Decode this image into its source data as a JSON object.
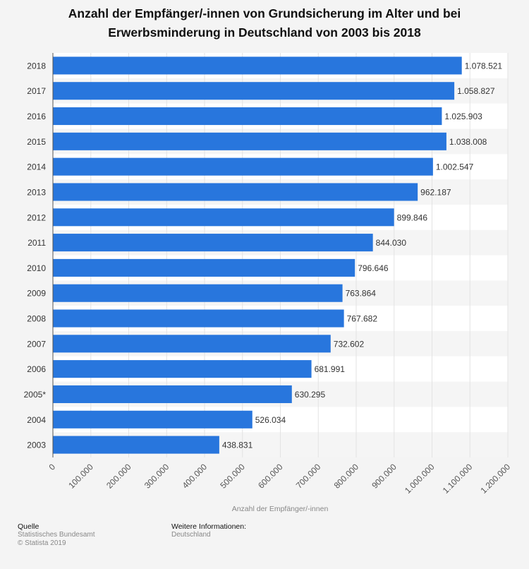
{
  "title": "Anzahl der Empfänger/-innen von Grundsicherung im Alter und bei Erwerbsminderung in Deutschland von 2003 bis 2018",
  "chart_data": {
    "type": "bar",
    "orientation": "horizontal",
    "categories": [
      "2018",
      "2017",
      "2016",
      "2015",
      "2014",
      "2013",
      "2012",
      "2011",
      "2010",
      "2009",
      "2008",
      "2007",
      "2006",
      "2005*",
      "2004",
      "2003"
    ],
    "values": [
      1078521,
      1058827,
      1025903,
      1038008,
      1002547,
      962187,
      899846,
      844030,
      796646,
      763864,
      767682,
      732602,
      681991,
      630295,
      526034,
      438831
    ],
    "value_labels": [
      "1.078.521",
      "1.058.827",
      "1.025.903",
      "1.038.008",
      "1.002.547",
      "962.187",
      "899.846",
      "844.030",
      "796.646",
      "763.864",
      "767.682",
      "732.602",
      "681.991",
      "630.295",
      "526.034",
      "438.831"
    ],
    "xlabel": "Anzahl der Empfänger/-innen",
    "ylabel": "",
    "xlim": [
      0,
      1200000
    ],
    "xticks": [
      0,
      100000,
      200000,
      300000,
      400000,
      500000,
      600000,
      700000,
      800000,
      900000,
      1000000,
      1100000,
      1200000
    ],
    "xtick_labels": [
      "0",
      "100.000",
      "200.000",
      "300.000",
      "400.000",
      "500.000",
      "600.000",
      "700.000",
      "800.000",
      "900.000",
      "1.000.000",
      "1.100.000",
      "1.200.000"
    ],
    "grid": true,
    "legend": "none",
    "bar_color": "#2876dd"
  },
  "footer": {
    "source_heading": "Quelle",
    "source_lines": [
      "Statistisches Bundesamt",
      "© Statista 2019"
    ],
    "info_heading": "Weitere Informationen:",
    "info_lines": [
      "Deutschland"
    ]
  }
}
